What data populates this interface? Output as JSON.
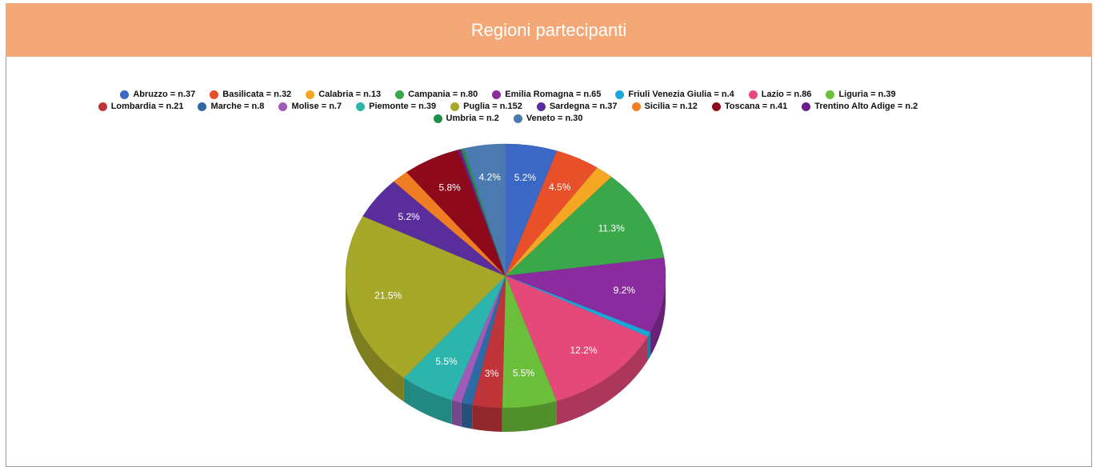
{
  "chart_data": {
    "type": "pie",
    "title": "Regioni partecipanti",
    "categories": [
      "Abruzzo = n.37",
      "Basilicata = n.32",
      "Calabria = n.13",
      "Campania = n.80",
      "Emilia Romagna = n.65",
      "Friuli Venezia Giulia = n.4",
      "Lazio = n.86",
      "Liguria = n.39",
      "Lombardia = n.21",
      "Marche = n.8",
      "Molise = n.7",
      "Piemonte = n.39",
      "Puglia = n.152",
      "Sardegna = n.37",
      "Sicilia = n.12",
      "Toscana = n.41",
      "Trentino Alto Adige = n.2",
      "Umbria = n.2",
      "Veneto = n.30"
    ],
    "values": [
      5.2,
      4.5,
      1.8,
      11.3,
      9.2,
      0.6,
      12.2,
      5.5,
      3,
      1.1,
      1.0,
      5.5,
      21.5,
      5.2,
      1.7,
      5.8,
      0.3,
      0.3,
      4.2
    ],
    "value_labels": [
      "5.2%",
      "4.5%",
      null,
      "11.3%",
      "9.2%",
      null,
      "12.2%",
      "5.5%",
      "3%",
      null,
      null,
      "5.5%",
      "21.5%",
      "5.2%",
      null,
      "5.8%",
      null,
      null,
      "4.2%"
    ],
    "colors": [
      "#3a68c4",
      "#e8502a",
      "#f5a623",
      "#3aa84a",
      "#8b2c9e",
      "#1aa6d8",
      "#e4497a",
      "#6cbf3a",
      "#c0353a",
      "#2e6aa6",
      "#a05ab8",
      "#2cb5ad",
      "#a6a82a",
      "#5a2d9c",
      "#f07c24",
      "#8e0a1a",
      "#6a1e8e",
      "#228e4a",
      "#4a7ab0"
    ],
    "legend": "top"
  }
}
